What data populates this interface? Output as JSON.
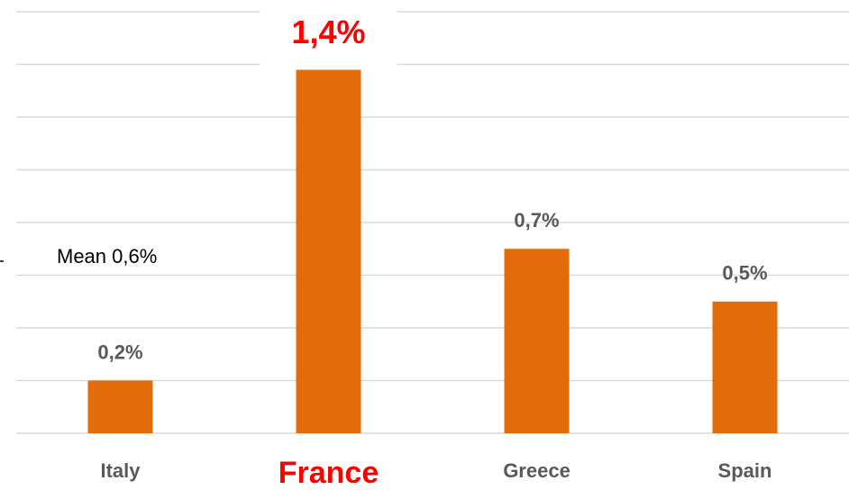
{
  "chart_data": {
    "type": "bar",
    "categories": [
      "Italy",
      "France",
      "Greece",
      "Spain"
    ],
    "values": [
      0.2,
      1.4,
      0.7,
      0.5
    ],
    "value_labels": [
      "0,2%",
      "1,4%",
      "0,7%",
      "0,5%"
    ],
    "color": "#e36c0a",
    "ylim": [
      0,
      1.6
    ],
    "yticks": [
      0,
      0.2,
      0.4,
      0.6,
      0.8,
      1.0,
      1.2,
      1.4,
      1.6
    ],
    "grid": true,
    "annotation": "Mean 0,6%",
    "highlight_category": "France",
    "highlight_color": "#ff0000"
  }
}
